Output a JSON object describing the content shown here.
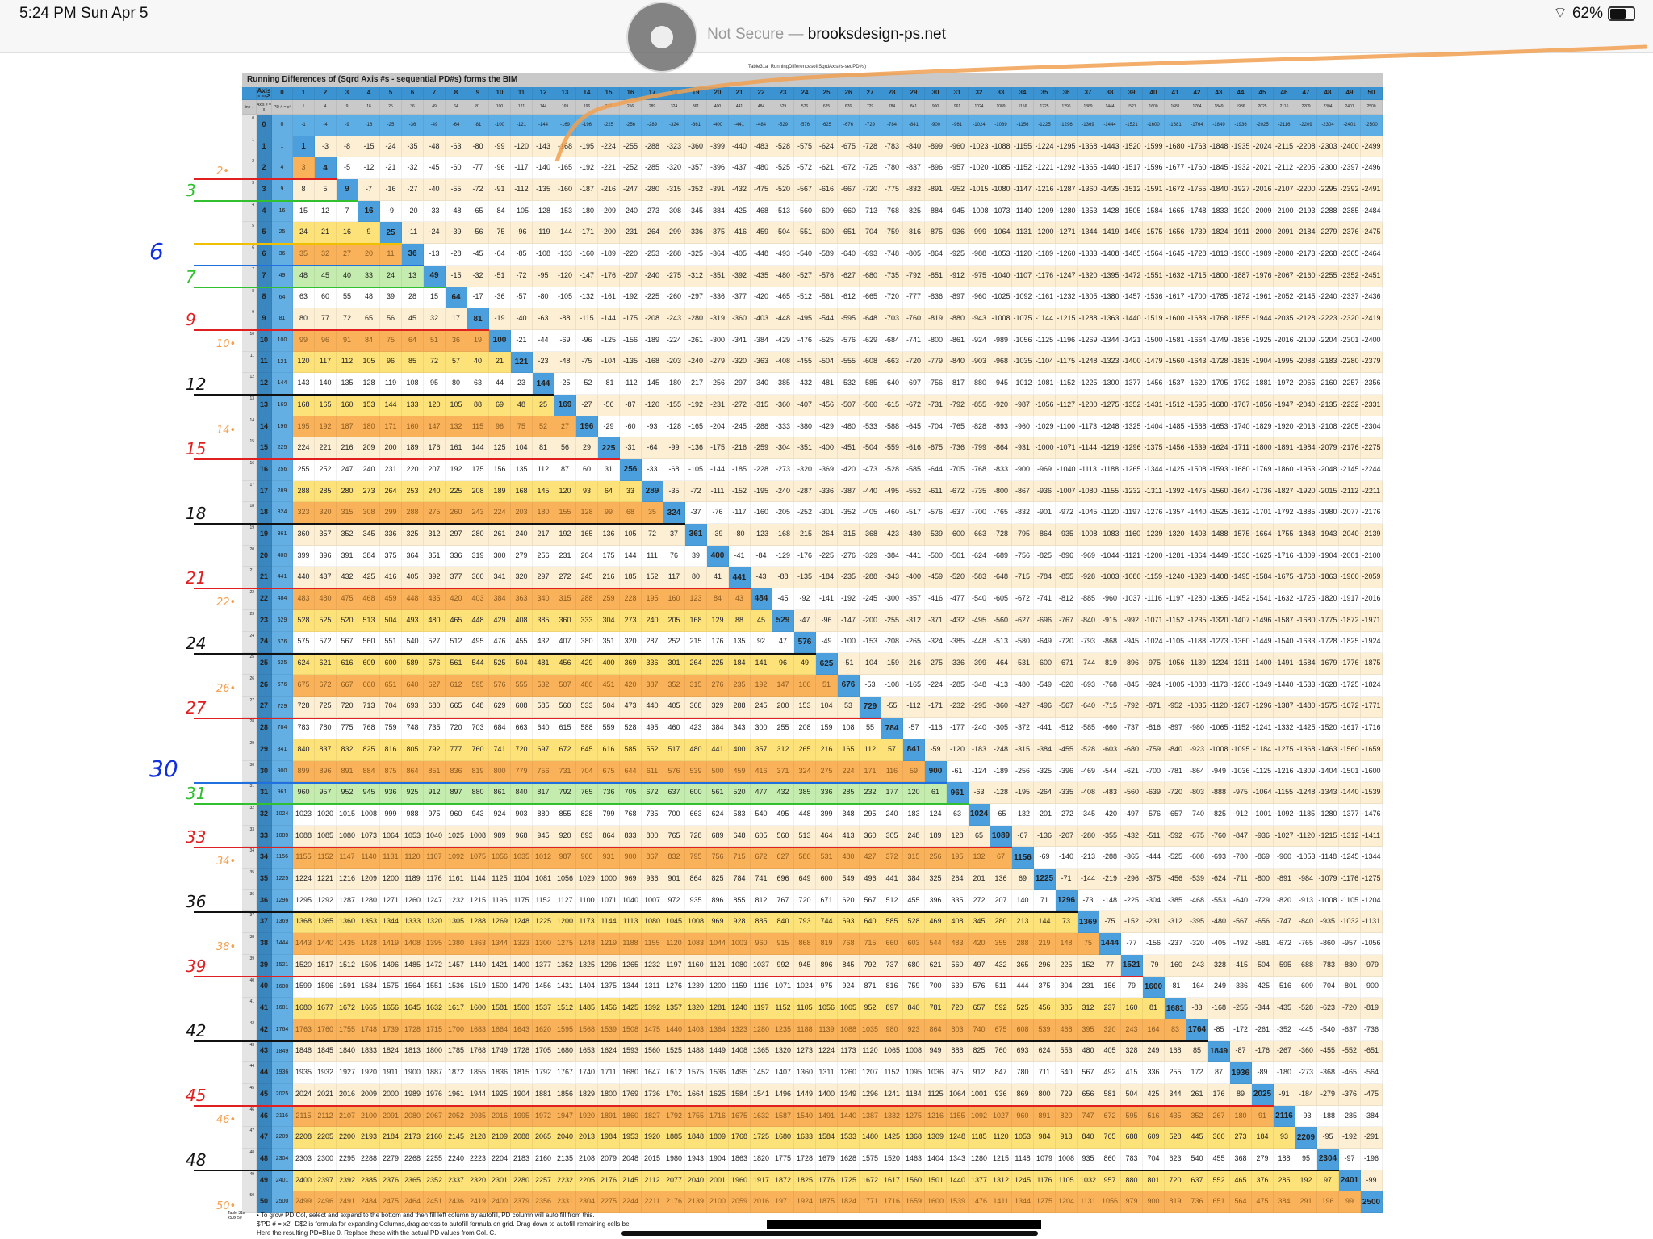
{
  "status_bar": {
    "time": "5:24 PM  Sun Apr 5",
    "url_prefix": "Not Secure —",
    "url": "brooksdesign-ps.net",
    "battery": "62%"
  },
  "caption": "Table31a_RunningDifferencesof(SqrdAxis#s-seqPD#s)",
  "sheet": {
    "title": "Running Differences of (Sqrd Axis #s - sequential PD#s) forms the BIM",
    "header_axis_label": "Axis- -->",
    "header_line_label": "line ↓",
    "header_axisx_label": "Axis # = x",
    "header_pd_label": "PD # = x²",
    "axis_max": 50,
    "highlights": {
      "orange": [
        2,
        6,
        10,
        14,
        18,
        22,
        26,
        30,
        34,
        38,
        42,
        46,
        50
      ],
      "yellow": [
        5,
        11,
        13,
        17,
        23,
        25,
        29,
        37,
        41,
        47,
        49
      ],
      "green": [
        7,
        31
      ]
    },
    "colors": {
      "header": "#3c93d1",
      "diagonal": "#4a9fdc",
      "cream": "#fcefd4"
    }
  },
  "annotations": [
    {
      "row": 2,
      "text": "2•",
      "color": "#f5a050",
      "line": "#e02020"
    },
    {
      "row": 3,
      "text": "3",
      "color": "#30c030",
      "line": "#30c030"
    },
    {
      "row": 5,
      "text": "",
      "color": "#f0c000",
      "line": "#f0c000"
    },
    {
      "row": 6,
      "text": "6",
      "color": "#1030e0",
      "line": "#2070e0"
    },
    {
      "row": 7,
      "text": "7",
      "color": "#30c030",
      "line": "#30c030"
    },
    {
      "row": 9,
      "text": "9",
      "color": "#e02020",
      "line": "#e02020"
    },
    {
      "row": 10,
      "text": "10•",
      "color": "#f5a050",
      "line": ""
    },
    {
      "row": 12,
      "text": "12",
      "color": "#111111",
      "line": "#111111"
    },
    {
      "row": 14,
      "text": "14•",
      "color": "#f5a050",
      "line": ""
    },
    {
      "row": 15,
      "text": "15",
      "color": "#e02020",
      "line": "#e02020"
    },
    {
      "row": 18,
      "text": "18",
      "color": "#111111",
      "line": "#111111"
    },
    {
      "row": 21,
      "text": "21",
      "color": "#e02020",
      "line": "#e02020"
    },
    {
      "row": 22,
      "text": "22•",
      "color": "#f5a050",
      "line": ""
    },
    {
      "row": 24,
      "text": "24",
      "color": "#111111",
      "line": "#111111"
    },
    {
      "row": 26,
      "text": "26•",
      "color": "#f5a050",
      "line": ""
    },
    {
      "row": 27,
      "text": "27",
      "color": "#e02020",
      "line": "#e02020"
    },
    {
      "row": 30,
      "text": "30",
      "color": "#1030e0",
      "line": "#2070e0"
    },
    {
      "row": 31,
      "text": "31",
      "color": "#30c030",
      "line": "#30c030"
    },
    {
      "row": 33,
      "text": "33",
      "color": "#e02020",
      "line": "#e02020"
    },
    {
      "row": 34,
      "text": "34•",
      "color": "#f5a050",
      "line": ""
    },
    {
      "row": 36,
      "text": "36",
      "color": "#111111",
      "line": "#111111"
    },
    {
      "row": 38,
      "text": "38•",
      "color": "#f5a050",
      "line": ""
    },
    {
      "row": 39,
      "text": "39",
      "color": "#e02020",
      "line": "#e02020"
    },
    {
      "row": 42,
      "text": "42",
      "color": "#111111",
      "line": "#111111"
    },
    {
      "row": 45,
      "text": "45",
      "color": "#e02020",
      "line": "#e02020"
    },
    {
      "row": 46,
      "text": "46•",
      "color": "#f5a050",
      "line": ""
    },
    {
      "row": 48,
      "text": "48",
      "color": "#111111",
      "line": "#111111"
    },
    {
      "row": 50,
      "text": "50•",
      "color": "#f5a050",
      "line": ""
    }
  ],
  "notes": {
    "label": "Table 31a x50x 50",
    "lines": [
      "• To grow PD Col, select and expand to the bottom and then fill left column by autofill, PD column will auto fill from this.",
      "$'PD # = x2'−D$2 is formula for expanding Columns,drag across to autofill formula on grid. Drag down to autofill remaining cells bel",
      "Here the resulting PD=Blue 0. Replace these with the actual PD values from Col. C."
    ]
  }
}
